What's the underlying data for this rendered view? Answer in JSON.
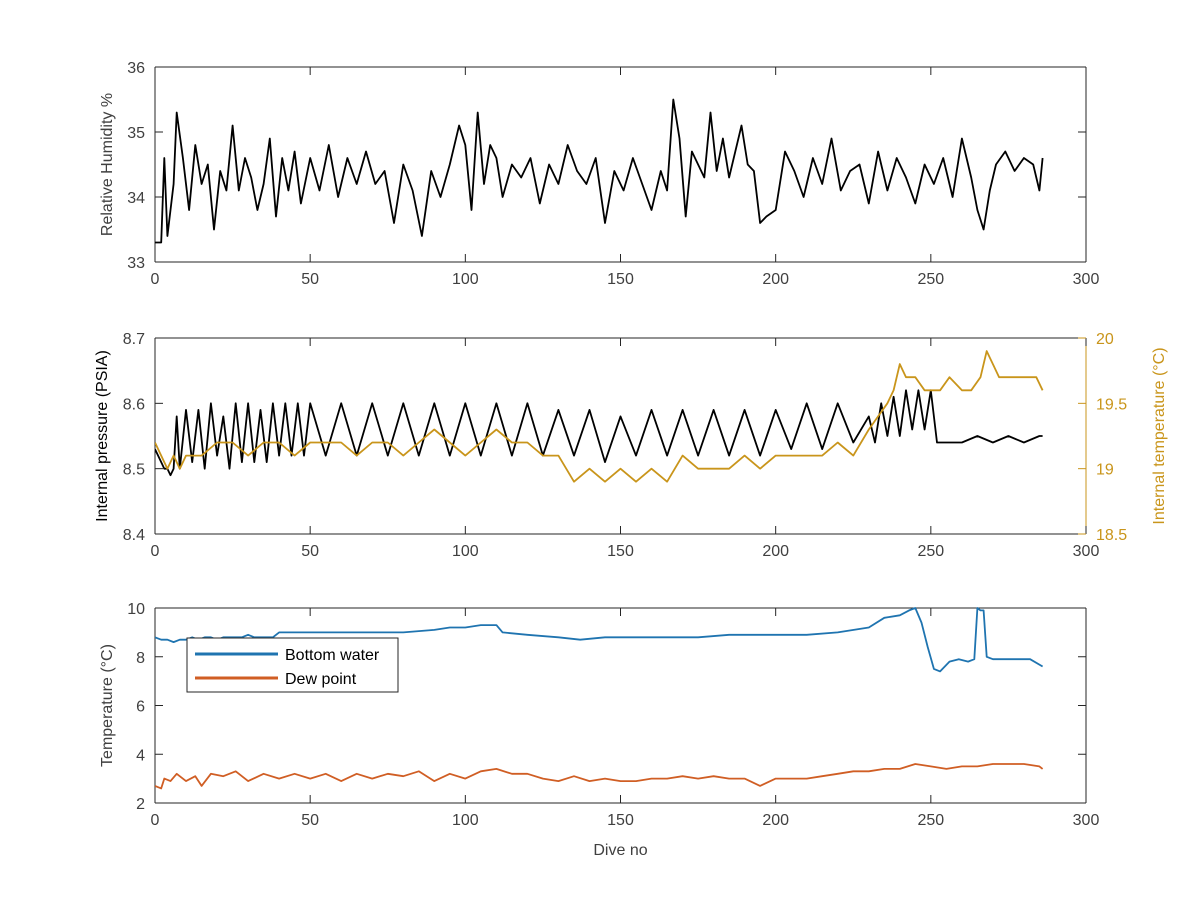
{
  "colors": {
    "black": "#000000",
    "axis": "#262626",
    "tick_text": "#404040",
    "pressure": "#000000",
    "internal_temp": "#C9951B",
    "bottom_water": "#1F74B0",
    "dew_point": "#D05E24"
  },
  "chart_data": [
    {
      "type": "line",
      "ylabel": "Relative Humidity %",
      "xlim": [
        0,
        300
      ],
      "ylim": [
        33,
        36
      ],
      "xticks": [
        "0",
        "50",
        "100",
        "150",
        "200",
        "250",
        "300"
      ],
      "yticks": [
        "33",
        "34",
        "35",
        "36"
      ],
      "grid": false,
      "series": [
        {
          "x": [
            0,
            2,
            3,
            4,
            6,
            7,
            9,
            11,
            13,
            15,
            17,
            19,
            21,
            23,
            25,
            27,
            29,
            31,
            33,
            35,
            37,
            39,
            41,
            43,
            45,
            47,
            50,
            53,
            56,
            59,
            62,
            65,
            68,
            71,
            74,
            77,
            80,
            83,
            86,
            89,
            92,
            95,
            98,
            100,
            102,
            104,
            106,
            108,
            110,
            112,
            115,
            118,
            121,
            124,
            127,
            130,
            133,
            136,
            139,
            142,
            145,
            148,
            151,
            154,
            157,
            160,
            163,
            165,
            167,
            169,
            171,
            173,
            175,
            177,
            179,
            181,
            183,
            185,
            187,
            189,
            191,
            193,
            195,
            197,
            200,
            203,
            206,
            209,
            212,
            215,
            218,
            221,
            224,
            227,
            230,
            233,
            236,
            239,
            242,
            245,
            248,
            251,
            254,
            257,
            260,
            263,
            265,
            267,
            269,
            271,
            274,
            277,
            280,
            283,
            285,
            286
          ],
          "y": [
            33.3,
            33.3,
            34.6,
            33.4,
            34.2,
            35.3,
            34.6,
            33.8,
            34.8,
            34.2,
            34.5,
            33.5,
            34.4,
            34.1,
            35.1,
            34.1,
            34.6,
            34.3,
            33.8,
            34.2,
            34.9,
            33.7,
            34.6,
            34.1,
            34.7,
            33.9,
            34.6,
            34.1,
            34.8,
            34.0,
            34.6,
            34.2,
            34.7,
            34.2,
            34.4,
            33.6,
            34.5,
            34.1,
            33.4,
            34.4,
            34.0,
            34.5,
            35.1,
            34.8,
            33.8,
            35.3,
            34.2,
            34.8,
            34.6,
            34.0,
            34.5,
            34.3,
            34.6,
            33.9,
            34.5,
            34.2,
            34.8,
            34.4,
            34.2,
            34.6,
            33.6,
            34.4,
            34.1,
            34.6,
            34.2,
            33.8,
            34.4,
            34.1,
            35.5,
            34.9,
            33.7,
            34.7,
            34.5,
            34.3,
            35.3,
            34.4,
            34.9,
            34.3,
            34.7,
            35.1,
            34.5,
            34.4,
            33.6,
            33.7,
            33.8,
            34.7,
            34.4,
            34.0,
            34.6,
            34.2,
            34.9,
            34.1,
            34.4,
            34.5,
            33.9,
            34.7,
            34.1,
            34.6,
            34.3,
            33.9,
            34.5,
            34.2,
            34.6,
            34.0,
            34.9,
            34.3,
            33.8,
            33.5,
            34.1,
            34.5,
            34.7,
            34.4,
            34.6,
            34.5,
            34.1,
            34.6
          ],
          "color": "#000000"
        }
      ]
    },
    {
      "type": "line",
      "ylabel": "Internal pressure (PSIA)",
      "ylabel_right": "Internal temperature (°C)",
      "xlim": [
        0,
        300
      ],
      "ylim": [
        8.4,
        8.7
      ],
      "ylim_right": [
        18.5,
        20
      ],
      "xticks": [
        "0",
        "50",
        "100",
        "150",
        "200",
        "250",
        "300"
      ],
      "yticks": [
        "8.4",
        "8.5",
        "8.6",
        "8.7"
      ],
      "yticks_right": [
        "18.5",
        "19",
        "19.5",
        "20"
      ],
      "grid": false,
      "series": [
        {
          "axis": "left",
          "x": [
            0,
            1,
            2,
            3,
            4,
            5,
            6,
            7,
            8,
            10,
            12,
            14,
            16,
            18,
            20,
            22,
            24,
            26,
            28,
            30,
            32,
            34,
            36,
            38,
            40,
            42,
            44,
            46,
            48,
            50,
            55,
            60,
            65,
            70,
            75,
            80,
            85,
            90,
            95,
            100,
            105,
            110,
            115,
            120,
            125,
            130,
            135,
            140,
            145,
            150,
            155,
            160,
            165,
            170,
            175,
            180,
            185,
            190,
            195,
            200,
            205,
            210,
            215,
            220,
            225,
            230,
            232,
            234,
            236,
            238,
            240,
            242,
            244,
            246,
            248,
            250,
            252,
            255,
            260,
            265,
            270,
            275,
            280,
            285,
            286
          ],
          "y": [
            8.53,
            8.52,
            8.51,
            8.5,
            8.5,
            8.49,
            8.5,
            8.58,
            8.5,
            8.59,
            8.51,
            8.59,
            8.5,
            8.6,
            8.52,
            8.58,
            8.5,
            8.6,
            8.51,
            8.6,
            8.51,
            8.59,
            8.51,
            8.6,
            8.52,
            8.6,
            8.52,
            8.6,
            8.52,
            8.6,
            8.52,
            8.6,
            8.52,
            8.6,
            8.52,
            8.6,
            8.52,
            8.6,
            8.52,
            8.6,
            8.52,
            8.6,
            8.52,
            8.6,
            8.52,
            8.59,
            8.52,
            8.59,
            8.51,
            8.58,
            8.52,
            8.59,
            8.52,
            8.59,
            8.52,
            8.59,
            8.52,
            8.59,
            8.52,
            8.59,
            8.53,
            8.6,
            8.53,
            8.6,
            8.54,
            8.58,
            8.54,
            8.6,
            8.55,
            8.61,
            8.55,
            8.62,
            8.56,
            8.62,
            8.56,
            8.62,
            8.54,
            8.54,
            8.54,
            8.55,
            8.54,
            8.55,
            8.54,
            8.55,
            8.55
          ],
          "color": "#000000"
        },
        {
          "axis": "right",
          "x": [
            0,
            2,
            4,
            6,
            8,
            10,
            12,
            15,
            20,
            25,
            30,
            35,
            40,
            45,
            50,
            55,
            60,
            65,
            70,
            75,
            80,
            85,
            90,
            95,
            100,
            105,
            110,
            115,
            120,
            125,
            130,
            135,
            140,
            145,
            150,
            155,
            160,
            165,
            170,
            175,
            180,
            185,
            190,
            195,
            200,
            205,
            210,
            215,
            220,
            225,
            230,
            233,
            236,
            238,
            240,
            242,
            245,
            248,
            250,
            253,
            256,
            260,
            263,
            266,
            268,
            270,
            272,
            275,
            280,
            284,
            286
          ],
          "y": [
            19.2,
            19.1,
            19.0,
            19.1,
            19.0,
            19.1,
            19.1,
            19.1,
            19.2,
            19.2,
            19.1,
            19.2,
            19.2,
            19.1,
            19.2,
            19.2,
            19.2,
            19.1,
            19.2,
            19.2,
            19.1,
            19.2,
            19.3,
            19.2,
            19.1,
            19.2,
            19.3,
            19.2,
            19.2,
            19.1,
            19.1,
            18.9,
            19.0,
            18.9,
            19.0,
            18.9,
            19.0,
            18.9,
            19.1,
            19.0,
            19.0,
            19.0,
            19.1,
            19.0,
            19.1,
            19.1,
            19.1,
            19.1,
            19.2,
            19.1,
            19.3,
            19.4,
            19.5,
            19.6,
            19.8,
            19.7,
            19.7,
            19.6,
            19.6,
            19.6,
            19.7,
            19.6,
            19.6,
            19.7,
            19.9,
            19.8,
            19.7,
            19.7,
            19.7,
            19.7,
            19.6
          ],
          "color": "#C9951B"
        }
      ]
    },
    {
      "type": "line",
      "xlabel": "Dive no",
      "ylabel": "Temperature (°C)",
      "xlim": [
        0,
        300
      ],
      "ylim": [
        2,
        10
      ],
      "xticks": [
        "0",
        "50",
        "100",
        "150",
        "200",
        "250",
        "300"
      ],
      "yticks": [
        "2",
        "4",
        "6",
        "8",
        "10"
      ],
      "grid": false,
      "legend": {
        "location": "top-left",
        "entries": [
          "Bottom water",
          "Dew point"
        ]
      },
      "series": [
        {
          "name": "Bottom water",
          "x": [
            0,
            2,
            4,
            6,
            8,
            10,
            12,
            14,
            16,
            18,
            20,
            22,
            24,
            26,
            28,
            30,
            32,
            34,
            36,
            38,
            40,
            43,
            46,
            50,
            60,
            70,
            80,
            90,
            95,
            100,
            105,
            110,
            112,
            120,
            130,
            137,
            145,
            155,
            165,
            175,
            185,
            195,
            200,
            205,
            210,
            220,
            230,
            235,
            240,
            243,
            245,
            247,
            249,
            251,
            253,
            256,
            259,
            262,
            264,
            265,
            266,
            267,
            268,
            270,
            274,
            278,
            282,
            286
          ],
          "y": [
            8.8,
            8.7,
            8.7,
            8.6,
            8.7,
            8.7,
            8.8,
            8.7,
            8.8,
            8.8,
            8.7,
            8.8,
            8.8,
            8.8,
            8.8,
            8.9,
            8.8,
            8.8,
            8.8,
            8.8,
            9.0,
            9.0,
            9.0,
            9.0,
            9.0,
            9.0,
            9.0,
            9.1,
            9.2,
            9.2,
            9.3,
            9.3,
            9.0,
            8.9,
            8.8,
            8.7,
            8.8,
            8.8,
            8.8,
            8.8,
            8.9,
            8.9,
            8.9,
            8.9,
            8.9,
            9.0,
            9.2,
            9.6,
            9.7,
            9.9,
            10.0,
            9.4,
            8.4,
            7.5,
            7.4,
            7.8,
            7.9,
            7.8,
            7.9,
            10.0,
            9.9,
            9.9,
            8.0,
            7.9,
            7.9,
            7.9,
            7.9,
            7.6
          ],
          "color": "#1F74B0"
        },
        {
          "name": "Dew point",
          "x": [
            0,
            2,
            3,
            5,
            7,
            10,
            13,
            15,
            18,
            22,
            26,
            30,
            35,
            40,
            45,
            50,
            55,
            60,
            65,
            70,
            75,
            80,
            85,
            90,
            95,
            100,
            105,
            110,
            115,
            120,
            125,
            130,
            135,
            140,
            145,
            150,
            155,
            160,
            165,
            170,
            175,
            180,
            185,
            190,
            195,
            200,
            205,
            210,
            215,
            220,
            225,
            230,
            235,
            240,
            245,
            250,
            255,
            260,
            265,
            270,
            275,
            280,
            285,
            286
          ],
          "y": [
            2.7,
            2.6,
            3.0,
            2.9,
            3.2,
            2.9,
            3.1,
            2.7,
            3.2,
            3.1,
            3.3,
            2.9,
            3.2,
            3.0,
            3.2,
            3.0,
            3.2,
            2.9,
            3.2,
            3.0,
            3.2,
            3.1,
            3.3,
            2.9,
            3.2,
            3.0,
            3.3,
            3.4,
            3.2,
            3.2,
            3.0,
            2.9,
            3.1,
            2.9,
            3.0,
            2.9,
            2.9,
            3.0,
            3.0,
            3.1,
            3.0,
            3.1,
            3.0,
            3.0,
            2.7,
            3.0,
            3.0,
            3.0,
            3.1,
            3.2,
            3.3,
            3.3,
            3.4,
            3.4,
            3.6,
            3.5,
            3.4,
            3.5,
            3.5,
            3.6,
            3.6,
            3.6,
            3.5,
            3.4
          ],
          "color": "#D05E24"
        }
      ]
    }
  ]
}
